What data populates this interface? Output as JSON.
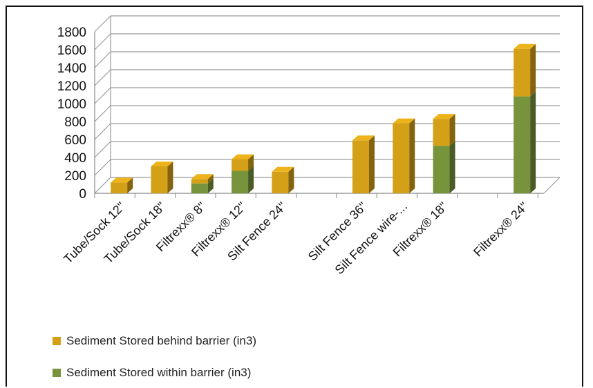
{
  "chart_data": {
    "type": "bar",
    "stacked": true,
    "three_d": true,
    "categories": [
      "Tube/Sock 12\"",
      "Tube/Sock 18\"",
      "Filtrexx® 8\"",
      "Filtrexx® 12\"",
      "Silt Fence 24\"",
      "",
      "Silt Fence 36\"",
      "Silt Fence wire-...",
      "Filtrexx® 18\"",
      "",
      "Filtrexx® 24\""
    ],
    "series": [
      {
        "name": "Sediment Stored within barrier (in3)",
        "color": "#77933c",
        "values": [
          0,
          0,
          110,
          250,
          0,
          null,
          0,
          0,
          530,
          null,
          1080
        ]
      },
      {
        "name": "Sediment Stored behind barrier (in3)",
        "color": "#d4a017",
        "values": [
          120,
          300,
          50,
          130,
          240,
          null,
          590,
          780,
          300,
          null,
          530
        ]
      }
    ],
    "y_ticks": [
      "0",
      "200",
      "400",
      "600",
      "800",
      "1000",
      "1200",
      "1400",
      "1600",
      "1800"
    ],
    "ylim": [
      0,
      1800
    ],
    "grid": true,
    "legend_position": "bottom-left"
  },
  "legend": [
    {
      "label": "Sediment Stored behind barrier (in3)",
      "color": "#d4a017"
    },
    {
      "label": "Sediment Stored within barrier (in3)",
      "color": "#77933c"
    }
  ]
}
